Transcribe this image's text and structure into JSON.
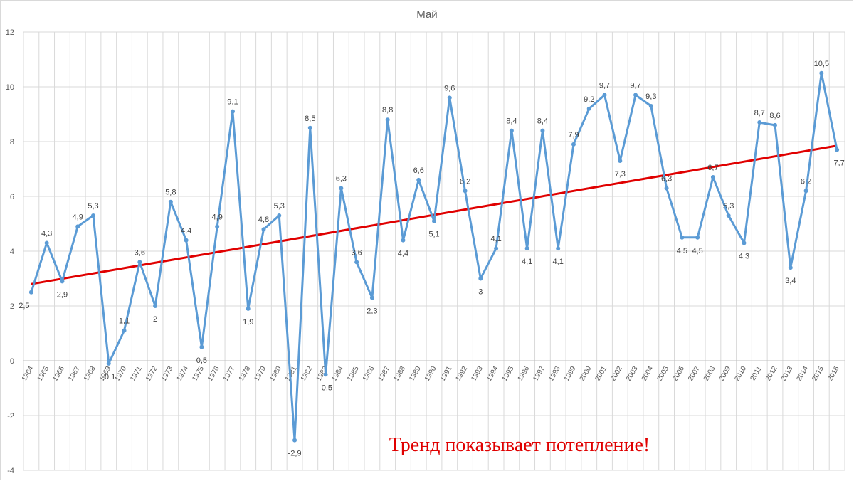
{
  "chart_data": {
    "type": "line",
    "title": "Май",
    "xlabel": "",
    "ylabel": "",
    "ylim": [
      -4,
      12
    ],
    "yticks": [
      -4,
      -2,
      0,
      2,
      4,
      6,
      8,
      10,
      12
    ],
    "ytick_labels": [
      "-4",
      "-2",
      "0",
      "2",
      "4",
      "6",
      "8",
      "10",
      "12"
    ],
    "grid": true,
    "legend": "none",
    "categories": [
      "1964",
      "1965",
      "1966",
      "1967",
      "1968",
      "1969",
      "1970",
      "1971",
      "1972",
      "1973",
      "1974",
      "1975",
      "1976",
      "1977",
      "1978",
      "1979",
      "1980",
      "1981",
      "1982",
      "1983",
      "1984",
      "1985",
      "1986",
      "1987",
      "1988",
      "1989",
      "1990",
      "1991",
      "1992",
      "1993",
      "1994",
      "1995",
      "1996",
      "1997",
      "1998",
      "1999",
      "2000",
      "2001",
      "2002",
      "2003",
      "2004",
      "2005",
      "2006",
      "2007",
      "2008",
      "2009",
      "2010",
      "2011",
      "2012",
      "2013",
      "2014",
      "2015",
      "2016"
    ],
    "series": [
      {
        "values": [
          2.5,
          4.3,
          2.9,
          4.9,
          5.3,
          -0.1,
          1.1,
          3.6,
          2.0,
          5.8,
          4.4,
          0.5,
          4.9,
          9.1,
          1.9,
          4.8,
          5.3,
          -2.9,
          8.5,
          -0.5,
          6.3,
          3.6,
          2.3,
          8.8,
          4.4,
          6.6,
          5.1,
          9.6,
          6.2,
          3.0,
          4.1,
          8.4,
          4.1,
          8.4,
          4.1,
          7.9,
          9.2,
          9.7,
          7.3,
          9.7,
          9.3,
          6.3,
          4.5,
          4.5,
          6.7,
          5.3,
          4.3,
          8.7,
          8.6,
          3.4,
          6.2,
          10.5,
          7.7
        ],
        "color": "#5b9bd5",
        "data_labels": [
          "2,5",
          "4,3",
          "2,9",
          "4,9",
          "5,3",
          "-0,1",
          "1,1",
          "3,6",
          "2",
          "5,8",
          "4,4",
          "0,5",
          "4,9",
          "9,1",
          "1,9",
          "4,8",
          "5,3",
          "-2,9",
          "8,5",
          "-0,5",
          "6,3",
          "3,6",
          "2,3",
          "8,8",
          "4,4",
          "6,6",
          "5,1",
          "9,6",
          "6,2",
          "3",
          "4,1",
          "8,4",
          "4,1",
          "8,4",
          "4,1",
          "7,9",
          "9,2",
          "9,7",
          "7,3",
          "9,7",
          "9,3",
          "6,3",
          "4,5",
          "4,5",
          "6,7",
          "5,3",
          "4,3",
          "8,7",
          "8,6",
          "3,4",
          "6,2",
          "10,5",
          "7,7"
        ]
      }
    ],
    "trendline": {
      "type": "linear",
      "start": 2.8,
      "end": 7.85,
      "color": "#e00000"
    },
    "annotation": "Тренд показывает потепление!"
  }
}
